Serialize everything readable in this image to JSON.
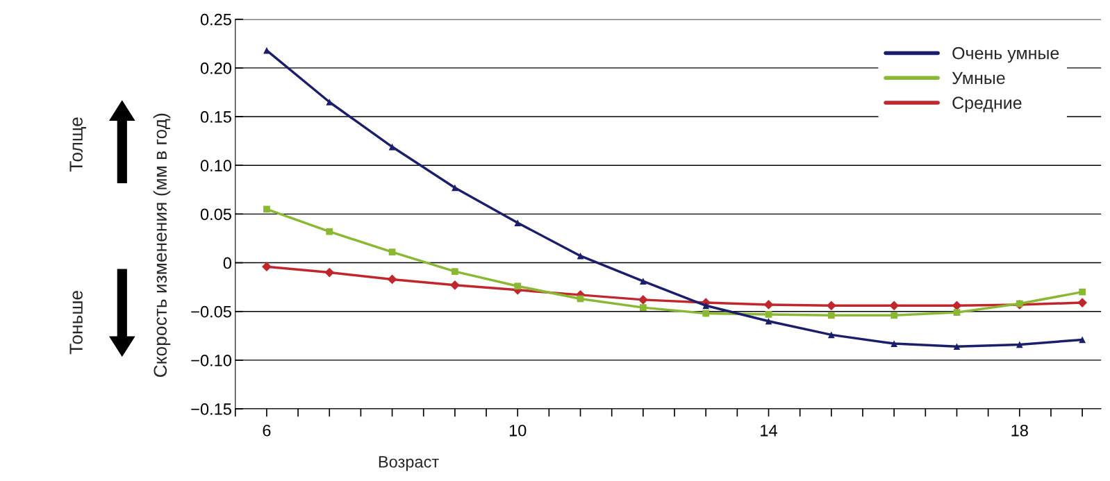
{
  "chart_data": {
    "type": "line",
    "xlabel": "Возраст",
    "ylabel": "Скорость изменения (мм в год)",
    "x": [
      6,
      7,
      8,
      9,
      10,
      11,
      12,
      13,
      14,
      15,
      16,
      17,
      18,
      19
    ],
    "series": [
      {
        "name": "Очень умные",
        "color": "#1b1f6b",
        "marker": "triangle",
        "values": [
          0.218,
          0.165,
          0.119,
          0.077,
          0.041,
          0.007,
          -0.019,
          -0.044,
          -0.06,
          -0.074,
          -0.083,
          -0.086,
          -0.084,
          -0.079
        ]
      },
      {
        "name": "Умные",
        "color": "#8ab833",
        "marker": "square",
        "values": [
          0.055,
          0.032,
          0.011,
          -0.009,
          -0.024,
          -0.037,
          -0.046,
          -0.052,
          -0.053,
          -0.054,
          -0.054,
          -0.051,
          -0.042,
          -0.03
        ]
      },
      {
        "name": "Средние",
        "color": "#c0272d",
        "marker": "diamond",
        "values": [
          -0.004,
          -0.01,
          -0.017,
          -0.023,
          -0.028,
          -0.033,
          -0.038,
          -0.041,
          -0.043,
          -0.044,
          -0.044,
          -0.044,
          -0.043,
          -0.041
        ]
      }
    ],
    "xlim": [
      5.5,
      19.3
    ],
    "xticks": [
      {
        "value": 5.5,
        "label": null
      },
      6,
      {
        "value": 6.5,
        "label": null
      },
      {
        "value": 7,
        "label": null
      },
      {
        "value": 7.5,
        "label": null
      },
      {
        "value": 8,
        "label": null
      },
      {
        "value": 8.5,
        "label": null
      },
      {
        "value": 9,
        "label": null
      },
      {
        "value": 9.5,
        "label": null
      },
      10,
      {
        "value": 10.5,
        "label": null
      },
      {
        "value": 11,
        "label": null
      },
      {
        "value": 11.5,
        "label": null
      },
      {
        "value": 12,
        "label": null
      },
      {
        "value": 12.5,
        "label": null
      },
      {
        "value": 13,
        "label": null
      },
      {
        "value": 13.5,
        "label": null
      },
      14,
      {
        "value": 14.5,
        "label": null
      },
      {
        "value": 15,
        "label": null
      },
      {
        "value": 15.5,
        "label": null
      },
      {
        "value": 16,
        "label": null
      },
      {
        "value": 16.5,
        "label": null
      },
      {
        "value": 17,
        "label": null
      },
      {
        "value": 17.5,
        "label": null
      },
      18,
      {
        "value": 18.5,
        "label": null
      },
      {
        "value": 19,
        "label": null
      }
    ],
    "ylim": [
      -0.15,
      0.25
    ],
    "yticks": [
      {
        "value": -0.15,
        "label": "−0.15"
      },
      {
        "value": -0.1,
        "label": "−0.10"
      },
      {
        "value": -0.05,
        "label": "−0.05"
      },
      0,
      {
        "value": 0.05,
        "label": "0.05"
      },
      {
        "value": 0.1,
        "label": "0.10"
      },
      {
        "value": 0.15,
        "label": "0.15"
      },
      {
        "value": 0.2,
        "label": "0.20"
      },
      0.25
    ],
    "grid": "y",
    "legend": "top right",
    "line_style": "solid",
    "annotations": [
      "Толще",
      "Тоньше"
    ]
  }
}
